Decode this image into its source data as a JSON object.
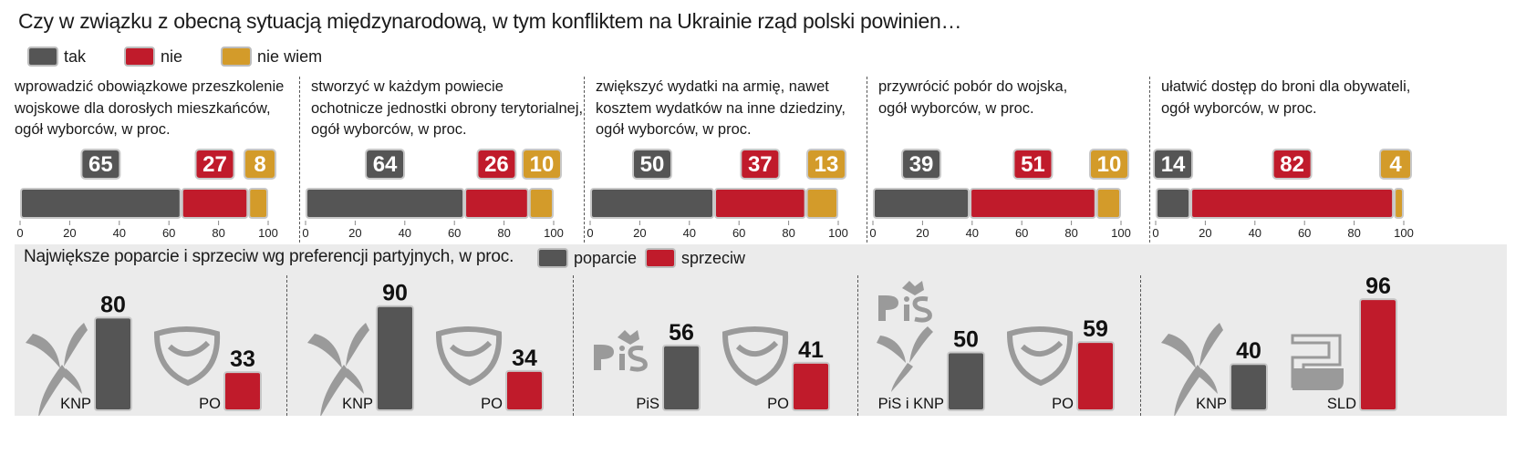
{
  "title": "Czy w związku z obecną sytuacją międzynarodową, w tym konfliktem na Ukrainie rząd polski powinien…",
  "legend": [
    {
      "label": "tak",
      "color": "#555555"
    },
    {
      "label": "nie",
      "color": "#c01b2b"
    },
    {
      "label": "nie wiem",
      "color": "#d39b2a"
    }
  ],
  "bottom": {
    "title": "Największe poparcie i sprzeciw wg preferencji partyjnych, w proc.",
    "legend": [
      {
        "label": "poparcie",
        "color": "#555555"
      },
      {
        "label": "sprzeciw",
        "color": "#c01b2b"
      }
    ]
  },
  "chart_data": [
    {
      "type": "bar",
      "stacked": true,
      "title_lines": [
        "wprowadzić obowiązkowe przeszkolenie",
        "wojskowe dla dorosłych mieszkańców,",
        "ogół wyborców, w proc."
      ],
      "categories": [
        "tak",
        "nie",
        "nie wiem"
      ],
      "values": [
        65,
        27,
        8
      ],
      "xlim": [
        0,
        100
      ],
      "ticks": [
        "0",
        "20",
        "40",
        "60",
        "80",
        "100"
      ]
    },
    {
      "type": "bar",
      "stacked": true,
      "title_lines": [
        "stworzyć w każdym powiecie",
        "ochotnicze jednostki obrony terytorialnej,",
        "ogół wyborców, w proc."
      ],
      "categories": [
        "tak",
        "nie",
        "nie wiem"
      ],
      "values": [
        64,
        26,
        10
      ],
      "xlim": [
        0,
        100
      ],
      "ticks": [
        "0",
        "20",
        "40",
        "60",
        "80",
        "100"
      ]
    },
    {
      "type": "bar",
      "stacked": true,
      "title_lines": [
        "zwiększyć wydatki na armię, nawet",
        "kosztem wydatków na inne dziedziny,",
        "ogół wyborców, w proc."
      ],
      "categories": [
        "tak",
        "nie",
        "nie wiem"
      ],
      "values": [
        50,
        37,
        13
      ],
      "xlim": [
        0,
        100
      ],
      "ticks": [
        "0",
        "20",
        "40",
        "60",
        "80",
        "100"
      ]
    },
    {
      "type": "bar",
      "stacked": true,
      "title_lines": [
        "przywrócić pobór do wojska,",
        "ogół wyborców, w proc."
      ],
      "categories": [
        "tak",
        "nie",
        "nie wiem"
      ],
      "values": [
        39,
        51,
        10
      ],
      "xlim": [
        0,
        100
      ],
      "ticks": [
        "0",
        "20",
        "40",
        "60",
        "80",
        "100"
      ]
    },
    {
      "type": "bar",
      "stacked": true,
      "title_lines": [
        "ułatwić dostęp do broni dla obywateli,",
        "ogół wyborców, w proc."
      ],
      "categories": [
        "tak",
        "nie",
        "nie wiem"
      ],
      "values": [
        14,
        82,
        4
      ],
      "xlim": [
        0,
        100
      ],
      "ticks": [
        "0",
        "20",
        "40",
        "60",
        "80",
        "100"
      ]
    },
    {
      "type": "bar",
      "title": "Największe poparcie i sprzeciw wg preferencji partyjnych, w proc.",
      "ylim": [
        0,
        100
      ],
      "panels": [
        {
          "support": {
            "party": "KNP",
            "logo": "knp-logo",
            "value": 80
          },
          "opposition": {
            "party": "PO",
            "logo": "po-logo",
            "value": 33
          }
        },
        {
          "support": {
            "party": "KNP",
            "logo": "knp-logo",
            "value": 90
          },
          "opposition": {
            "party": "PO",
            "logo": "po-logo",
            "value": 34
          }
        },
        {
          "support": {
            "party": "PiS",
            "logo": "pis-logo",
            "value": 56
          },
          "opposition": {
            "party": "PO",
            "logo": "po-logo",
            "value": 41
          }
        },
        {
          "support": {
            "party": "PiS i KNP",
            "logo": "pis-knp-logo",
            "value": 50
          },
          "opposition": {
            "party": "PO",
            "logo": "po-logo",
            "value": 59
          }
        },
        {
          "support": {
            "party": "KNP",
            "logo": "knp-logo",
            "value": 40
          },
          "opposition": {
            "party": "SLD",
            "logo": "sld-logo",
            "value": 96
          }
        }
      ]
    }
  ]
}
